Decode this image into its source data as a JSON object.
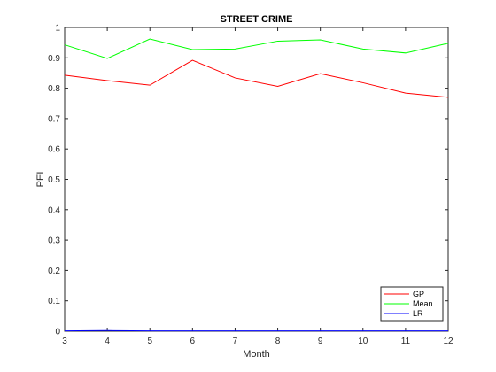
{
  "chart_data": {
    "type": "line",
    "title": "STREET CRIME",
    "xlabel": "Month",
    "ylabel": "PEI",
    "xlim": [
      3,
      12
    ],
    "ylim": [
      0,
      1
    ],
    "x": [
      3,
      4,
      5,
      6,
      7,
      8,
      9,
      10,
      11,
      12
    ],
    "xticks": [
      "3",
      "4",
      "5",
      "6",
      "7",
      "8",
      "9",
      "10",
      "11",
      "12"
    ],
    "yticks": [
      "0",
      "0.1",
      "0.2",
      "0.3",
      "0.4",
      "0.5",
      "0.6",
      "0.7",
      "0.8",
      "0.9",
      "1"
    ],
    "grid": false,
    "legend_position": "bottom-right",
    "series": [
      {
        "name": "GP",
        "color": "#ff0000",
        "values": [
          0.843,
          0.825,
          0.81,
          0.892,
          0.834,
          0.806,
          0.848,
          0.818,
          0.784,
          0.77
        ]
      },
      {
        "name": "Mean",
        "color": "#00ff00",
        "values": [
          0.943,
          0.898,
          0.962,
          0.927,
          0.929,
          0.955,
          0.959,
          0.929,
          0.916,
          0.948
        ]
      },
      {
        "name": "LR",
        "color": "#0000ff",
        "values": [
          0.001,
          0.002,
          0.001,
          0.001,
          0.001,
          0.001,
          0.001,
          0.001,
          0.001,
          0.001
        ]
      }
    ]
  }
}
